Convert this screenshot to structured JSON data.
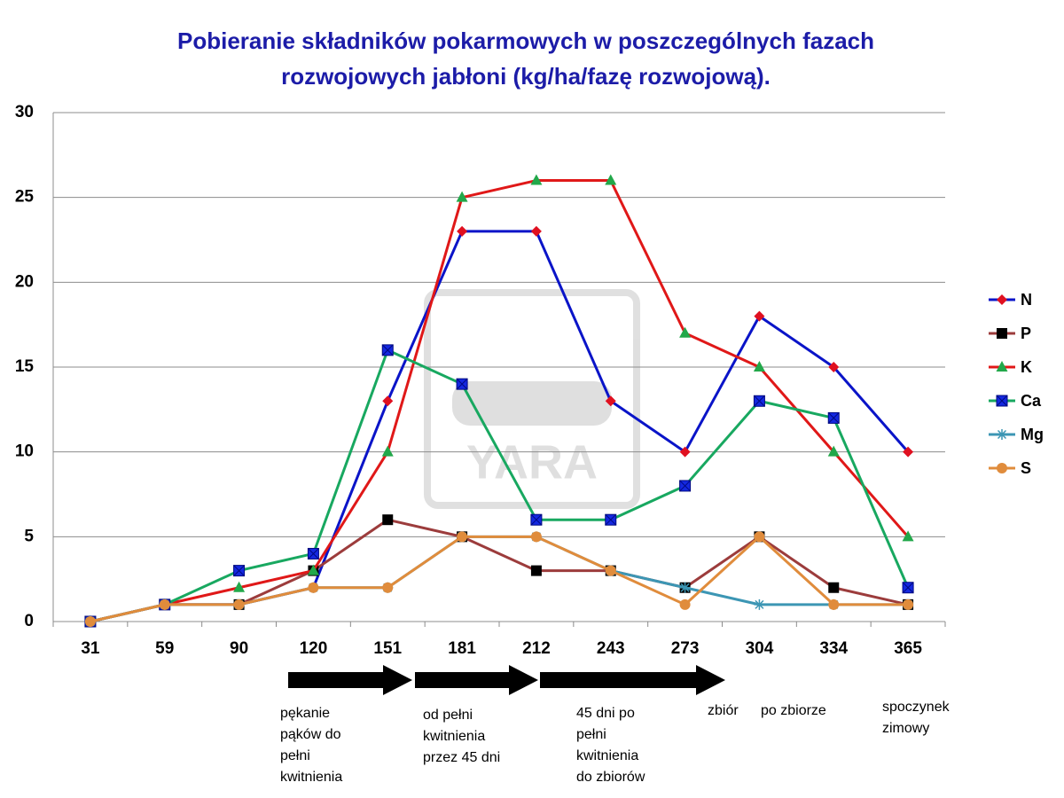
{
  "chart_data": {
    "type": "line",
    "title": [
      "Pobieranie składników pokarmowych w poszczególnych fazach",
      "rozwojowych jabłoni (kg/ha/fazę  rozwojową)."
    ],
    "watermark": "YARA",
    "categories": [
      "31",
      "59",
      "90",
      "120",
      "151",
      "181",
      "212",
      "243",
      "273",
      "304",
      "334",
      "365"
    ],
    "ylim": [
      0,
      30
    ],
    "yticks": [
      0,
      5,
      10,
      15,
      20,
      25,
      30
    ],
    "grid": true,
    "legend": "right",
    "series": [
      {
        "name": "N",
        "color": "#0a14c8",
        "marker": "diamond",
        "marker_color": "#e01020",
        "values": [
          0,
          1,
          1,
          2,
          13,
          23,
          23,
          13,
          10,
          18,
          15,
          10
        ]
      },
      {
        "name": "P",
        "color": "#9c3c3c",
        "marker": "square",
        "marker_color": "#000000",
        "values": [
          0,
          1,
          1,
          3,
          6,
          5,
          3,
          3,
          2,
          5,
          2,
          1
        ]
      },
      {
        "name": "K",
        "color": "#e01818",
        "marker": "triangle",
        "marker_color": "#22a84a",
        "values": [
          0,
          1,
          2,
          3,
          10,
          25,
          26,
          26,
          17,
          15,
          10,
          5
        ]
      },
      {
        "name": "Ca",
        "color": "#18a860",
        "marker": "xsquare",
        "marker_color": "#1428e0",
        "values": [
          0,
          1,
          3,
          4,
          16,
          14,
          6,
          6,
          8,
          13,
          12,
          2
        ]
      },
      {
        "name": "Mg",
        "color": "#3c96b4",
        "marker": "star",
        "marker_color": "#3c96b4",
        "values": [
          0,
          1,
          1,
          2,
          2,
          5,
          5,
          3,
          2,
          1,
          1,
          1
        ]
      },
      {
        "name": "S",
        "color": "#e08c3c",
        "marker": "circle",
        "marker_color": "#e08c3c",
        "values": [
          0,
          1,
          1,
          2,
          2,
          5,
          5,
          3,
          1,
          5,
          1,
          1
        ]
      }
    ],
    "annotations": [
      [
        "pękanie",
        "pąków do",
        "pełni",
        "kwitnienia"
      ],
      [
        "od pełni",
        "kwitnienia",
        "przez 45 dni"
      ],
      [
        "45 dni po",
        "pełni",
        "kwitnienia",
        "do zbiorów"
      ],
      [
        "zbiór"
      ],
      [
        "po zbiorze"
      ],
      [
        "spoczynek",
        "zimowy"
      ]
    ]
  }
}
